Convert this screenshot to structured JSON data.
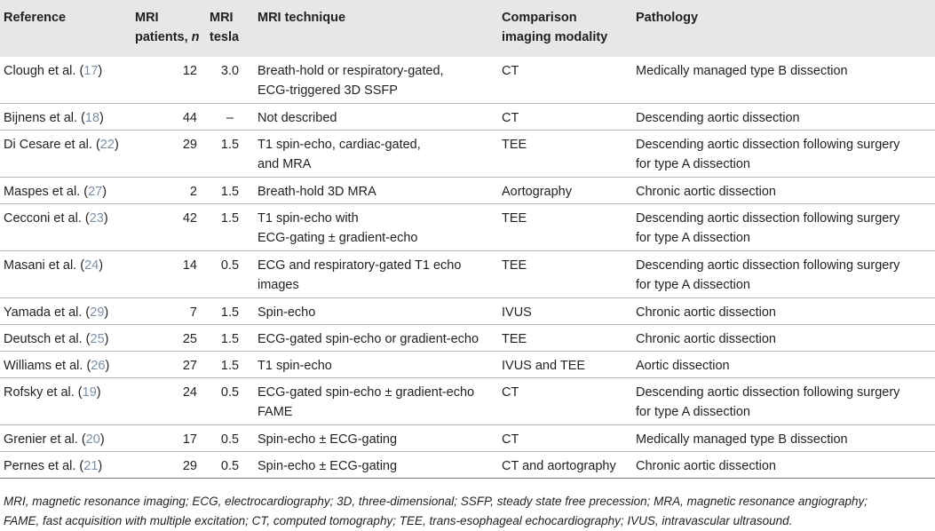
{
  "table": {
    "headers": {
      "reference": "Reference",
      "patients_line1": "MRI",
      "patients_line2": "patients,",
      "patients_n": "n",
      "tesla_line1": "MRI",
      "tesla_line2": "tesla",
      "technique": "MRI technique",
      "comparison_line1": "Comparison",
      "comparison_line2": "imaging modality",
      "pathology": "Pathology"
    },
    "rows": [
      {
        "ref": "Clough et al. (",
        "cite": "17",
        "close": ")",
        "patients": "12",
        "tesla": "3.0",
        "technique": [
          "Breath-hold or respiratory-gated,",
          "ECG-triggered 3D SSFP"
        ],
        "comparison": "CT",
        "pathology": [
          "Medically managed type B dissection"
        ]
      },
      {
        "ref": "Bijnens et al. (",
        "cite": "18",
        "close": ")",
        "patients": "44",
        "tesla": "–",
        "technique": [
          "Not described"
        ],
        "comparison": "CT",
        "pathology": [
          "Descending aortic dissection"
        ]
      },
      {
        "ref": "Di Cesare et al. (",
        "cite": "22",
        "close": ")",
        "patients": "29",
        "tesla": "1.5",
        "technique": [
          "T1 spin-echo, cardiac-gated,",
          "and MRA"
        ],
        "comparison": "TEE",
        "pathology": [
          "Descending aortic dissection following surgery",
          "for type A dissection"
        ]
      },
      {
        "ref": "Maspes et al. (",
        "cite": "27",
        "close": ")",
        "patients": "2",
        "tesla": "1.5",
        "technique": [
          "Breath-hold 3D MRA"
        ],
        "comparison": "Aortography",
        "pathology": [
          "Chronic aortic dissection"
        ]
      },
      {
        "ref": "Cecconi et al. (",
        "cite": "23",
        "close": ")",
        "patients": "42",
        "tesla": "1.5",
        "technique": [
          "T1 spin-echo with",
          "ECG-gating ± gradient-echo"
        ],
        "comparison": "TEE",
        "pathology": [
          "Descending aortic dissection following surgery",
          "for type A dissection"
        ]
      },
      {
        "ref": "Masani et al. (",
        "cite": "24",
        "close": ")",
        "patients": "14",
        "tesla": "0.5",
        "technique": [
          "ECG and respiratory-gated T1 echo",
          "images"
        ],
        "comparison": "TEE",
        "pathology": [
          "Descending aortic dissection following surgery",
          "for type A dissection"
        ]
      },
      {
        "ref": "Yamada et al. (",
        "cite": "29",
        "close": ")",
        "patients": "7",
        "tesla": "1.5",
        "technique": [
          "Spin-echo"
        ],
        "comparison": "IVUS",
        "pathology": [
          "Chronic aortic dissection"
        ]
      },
      {
        "ref": "Deutsch et al. (",
        "cite": "25",
        "close": ")",
        "patients": "25",
        "tesla": "1.5",
        "technique": [
          "ECG-gated spin-echo or gradient-echo"
        ],
        "comparison": "TEE",
        "pathology": [
          "Chronic aortic dissection"
        ]
      },
      {
        "ref": "Williams et al. (",
        "cite": "26",
        "close": ")",
        "patients": "27",
        "tesla": "1.5",
        "technique": [
          "T1 spin-echo"
        ],
        "comparison": "IVUS and TEE",
        "pathology": [
          "Aortic dissection"
        ]
      },
      {
        "ref": "Rofsky et al. (",
        "cite": "19",
        "close": ")",
        "patients": "24",
        "tesla": "0.5",
        "technique": [
          "ECG-gated spin-echo ± gradient-echo",
          "FAME"
        ],
        "comparison": "CT",
        "pathology": [
          "Descending aortic dissection following surgery",
          "for type A dissection"
        ]
      },
      {
        "ref": "Grenier et al. (",
        "cite": "20",
        "close": ")",
        "patients": "17",
        "tesla": "0.5",
        "technique": [
          "Spin-echo ± ECG-gating"
        ],
        "comparison": "CT",
        "pathology": [
          "Medically managed type B dissection"
        ]
      },
      {
        "ref": "Pernes et al. (",
        "cite": "21",
        "close": ")",
        "patients": "29",
        "tesla": "0.5",
        "technique": [
          "Spin-echo ± ECG-gating"
        ],
        "comparison": "CT and aortography",
        "pathology": [
          "Chronic aortic dissection"
        ]
      }
    ]
  },
  "footnote": {
    "line1": "MRI, magnetic resonance imaging; ECG, electrocardiography; 3D, three-dimensional; SSFP, steady state free precession; MRA, magnetic resonance angiography;",
    "line2": "FAME, fast acquisition with multiple excitation; CT, computed tomography; TEE, trans-esophageal echocardiography; IVUS, intravascular ultrasound."
  }
}
